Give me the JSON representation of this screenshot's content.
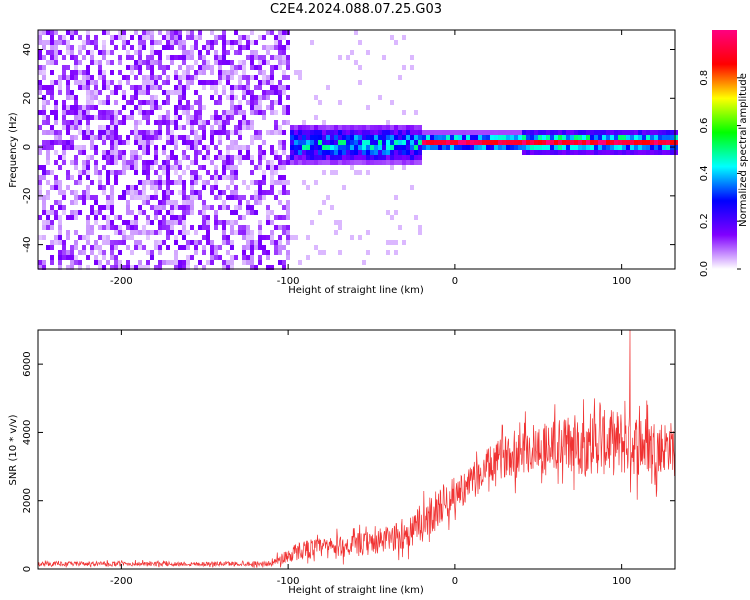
{
  "title": "C2E4.2024.088.07.25.G03",
  "chart_data": [
    {
      "type": "heatmap",
      "xlabel": "Height of straight line (km)",
      "ylabel": "Frequency (Hz)",
      "xlim": [
        -250,
        132
      ],
      "ylim": [
        -50,
        48
      ],
      "x_ticks": [
        -200,
        -100,
        0,
        100
      ],
      "y_ticks": [
        -40,
        -20,
        0,
        20,
        40
      ],
      "x_tick_labels": [
        "-200",
        "-100",
        "0",
        "100"
      ],
      "y_tick_labels": [
        "-40",
        "-20",
        "0",
        "20",
        "40"
      ],
      "colorbar": {
        "label": "Normalized spectral amplitude",
        "range": [
          0,
          1
        ],
        "ticks": [
          0.0,
          0.2,
          0.4,
          0.6,
          0.8
        ],
        "tick_labels": [
          "0.0",
          "0.2",
          "0.4",
          "0.6",
          "0.8"
        ],
        "colormap": [
          "#ffffff",
          "#8000ff",
          "#0000ff",
          "#00ffff",
          "#00ff00",
          "#ffff00",
          "#ff0000",
          "#ff0080"
        ]
      },
      "regions": [
        {
          "x_range": [
            -250,
            -100
          ],
          "freq_range": [
            -50,
            48
          ],
          "amplitude": [
            0.0,
            0.15
          ],
          "note_color": "#8000ff"
        },
        {
          "x_range": [
            -100,
            -20
          ],
          "freq_center": 1,
          "freq_halfwidth": 8,
          "amplitude": [
            0.1,
            0.5
          ]
        },
        {
          "x_range": [
            -20,
            132
          ],
          "freq_center": 2,
          "freq_halfwidth": 4,
          "amplitude": [
            0.2,
            1.0
          ]
        }
      ],
      "grid": false
    },
    {
      "type": "line",
      "xlabel": "Height of straight line (km)",
      "ylabel": "SNR (10 * v/v)",
      "xlim": [
        -250,
        132
      ],
      "ylim": [
        0,
        7000
      ],
      "x_ticks": [
        -200,
        -100,
        0,
        100
      ],
      "y_ticks": [
        0,
        2000,
        4000,
        6000
      ],
      "x_tick_labels": [
        "-200",
        "-100",
        "0",
        "100"
      ],
      "y_tick_labels": [
        "0",
        "2000",
        "4000",
        "6000"
      ],
      "series_color": "#f03232",
      "grid": false,
      "envelope": {
        "x": [
          -250,
          -200,
          -150,
          -110,
          -100,
          -90,
          -70,
          -50,
          -30,
          -20,
          -10,
          0,
          10,
          20,
          30,
          40,
          60,
          80,
          100,
          120,
          132
        ],
        "mean": [
          150,
          150,
          150,
          160,
          400,
          600,
          650,
          750,
          1000,
          1300,
          1800,
          2200,
          2500,
          3000,
          3300,
          3500,
          3600,
          3700,
          3700,
          3600,
          3600
        ],
        "spread": [
          120,
          120,
          120,
          130,
          450,
          500,
          550,
          650,
          800,
          1000,
          1100,
          900,
          900,
          1000,
          1100,
          1300,
          1500,
          1700,
          1800,
          1500,
          1300
        ]
      },
      "peak": {
        "x": 105,
        "y": 7000
      }
    }
  ]
}
